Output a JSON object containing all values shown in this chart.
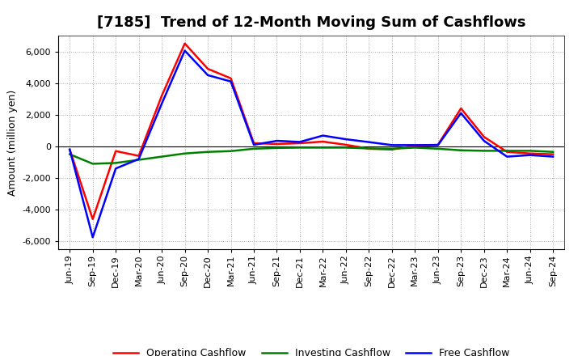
{
  "title": "[7185]  Trend of 12-Month Moving Sum of Cashflows",
  "ylabel": "Amount (million yen)",
  "x_labels": [
    "Jun-19",
    "Sep-19",
    "Dec-19",
    "Mar-20",
    "Jun-20",
    "Sep-20",
    "Dec-20",
    "Mar-21",
    "Jun-21",
    "Sep-21",
    "Dec-21",
    "Mar-22",
    "Jun-22",
    "Sep-22",
    "Dec-22",
    "Mar-23",
    "Jun-23",
    "Sep-23",
    "Dec-23",
    "Mar-24",
    "Jun-24",
    "Sep-24"
  ],
  "operating_cashflow": [
    -200,
    -4600,
    -300,
    -600,
    3200,
    6500,
    4900,
    4300,
    200,
    150,
    200,
    300,
    100,
    -150,
    -200,
    50,
    100,
    2400,
    600,
    -350,
    -450,
    -500
  ],
  "investing_cashflow": [
    -500,
    -1100,
    -1050,
    -850,
    -650,
    -450,
    -350,
    -300,
    -150,
    -100,
    -80,
    -80,
    -80,
    -130,
    -150,
    -80,
    -150,
    -250,
    -280,
    -280,
    -280,
    -350
  ],
  "free_cashflow": [
    -200,
    -5750,
    -1400,
    -800,
    2700,
    6050,
    4500,
    4100,
    100,
    350,
    280,
    680,
    450,
    270,
    80,
    80,
    80,
    2100,
    350,
    -650,
    -550,
    -650
  ],
  "operating_color": "#ff0000",
  "investing_color": "#008000",
  "free_color": "#0000ff",
  "ylim": [
    -6500,
    7000
  ],
  "yticks": [
    -6000,
    -4000,
    -2000,
    0,
    2000,
    4000,
    6000
  ],
  "background_color": "#ffffff",
  "line_width": 1.8,
  "title_fontsize": 13,
  "ylabel_fontsize": 9,
  "tick_fontsize": 8,
  "legend_fontsize": 9
}
